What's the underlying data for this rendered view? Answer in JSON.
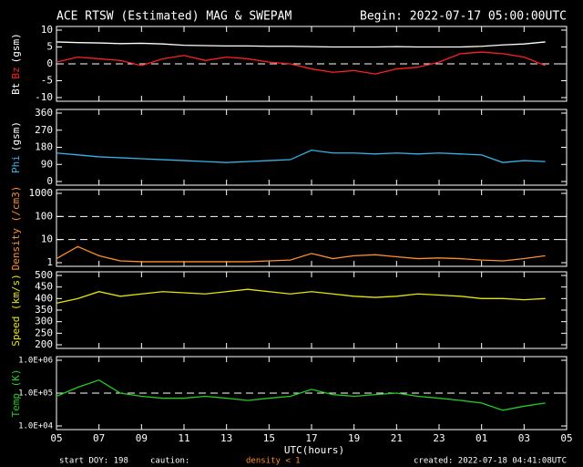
{
  "title": "ACE RTSW (Estimated) MAG & SWEPAM",
  "begin": "Begin: 2022-07-17 05:00:00UTC",
  "xlabel": "UTC(hours)",
  "footer": {
    "start": "start DOY: 198",
    "caution": "caution:",
    "caution_note": "density < 1",
    "caution_color": "#ff8c2a",
    "created": "created: 2022-07-18 04:41:08UTC"
  },
  "chart_data": [
    {
      "type": "line",
      "ylabel": [
        {
          "text": "Bt",
          "color": "#ffffff"
        },
        {
          "text": "Bz",
          "color": "#ff2020"
        },
        {
          "text": "(gsm)",
          "color": "#ffffff"
        }
      ],
      "x": [
        0,
        1,
        2,
        3,
        4,
        5,
        6,
        7,
        8,
        9,
        10,
        11,
        12,
        13,
        14,
        15,
        16,
        17,
        18,
        19,
        20,
        21,
        22,
        23
      ],
      "series": [
        {
          "name": "Bt",
          "color": "#ffffff",
          "values": [
            6.5,
            6.3,
            6.2,
            6.0,
            6.1,
            5.9,
            5.5,
            5.4,
            5.3,
            5.3,
            5.2,
            5.2,
            5.1,
            5.0,
            5.0,
            5.0,
            5.1,
            5.0,
            5.0,
            5.0,
            5.2,
            5.6,
            5.9,
            6.5
          ]
        },
        {
          "name": "Bz",
          "color": "#ff2020",
          "values": [
            0.5,
            2,
            1.5,
            1,
            -0.5,
            1.5,
            2.5,
            1,
            2,
            1.5,
            0.5,
            0,
            -1.5,
            -2.5,
            -2,
            -3,
            -1.5,
            -1,
            0.5,
            3,
            3.5,
            3,
            2,
            -0.5
          ]
        }
      ],
      "xlim": [
        0,
        24
      ],
      "ylim": [
        -10,
        10
      ],
      "yticks": [
        -10,
        -5,
        0,
        5,
        10
      ],
      "hlines": [
        0
      ],
      "log": false
    },
    {
      "type": "line",
      "ylabel": [
        {
          "text": "Phi",
          "color": "#33b3e6"
        },
        {
          "text": "(gsm)",
          "color": "#ffffff"
        }
      ],
      "x": [
        0,
        1,
        2,
        3,
        4,
        5,
        6,
        7,
        8,
        9,
        10,
        11,
        12,
        13,
        14,
        15,
        16,
        17,
        18,
        19,
        20,
        21,
        22,
        23
      ],
      "series": [
        {
          "name": "Phi",
          "color": "#33b3e6",
          "values": [
            150,
            140,
            130,
            125,
            120,
            115,
            110,
            105,
            100,
            105,
            110,
            115,
            165,
            150,
            150,
            145,
            150,
            145,
            150,
            145,
            140,
            100,
            110,
            105
          ]
        }
      ],
      "xlim": [
        0,
        24
      ],
      "ylim": [
        0,
        360
      ],
      "yticks": [
        0,
        90,
        180,
        270,
        360
      ],
      "hlines": [],
      "log": false
    },
    {
      "type": "line",
      "ylabel": [
        {
          "text": "Density (/cm3)",
          "color": "#ff8c2a"
        }
      ],
      "x": [
        0,
        1,
        2,
        3,
        4,
        5,
        6,
        7,
        8,
        9,
        10,
        11,
        12,
        13,
        14,
        15,
        16,
        17,
        18,
        19,
        20,
        21,
        22,
        23
      ],
      "series": [
        {
          "name": "Density",
          "color": "#ff8c2a",
          "values": [
            1.5,
            5,
            2,
            1.2,
            1.1,
            1.1,
            1.1,
            1.1,
            1.1,
            1.1,
            1.2,
            1.3,
            2.5,
            1.5,
            2,
            2.2,
            1.8,
            1.5,
            1.6,
            1.5,
            1.3,
            1.2,
            1.5,
            2
          ]
        }
      ],
      "xlim": [
        0,
        24
      ],
      "ylim": [
        1,
        1000
      ],
      "yticks": [
        1,
        10,
        100,
        1000
      ],
      "hlines": [
        10,
        100
      ],
      "log": true
    },
    {
      "type": "line",
      "ylabel": [
        {
          "text": "Speed (km/s)",
          "color": "#e6e600"
        }
      ],
      "x": [
        0,
        1,
        2,
        3,
        4,
        5,
        6,
        7,
        8,
        9,
        10,
        11,
        12,
        13,
        14,
        15,
        16,
        17,
        18,
        19,
        20,
        21,
        22,
        23
      ],
      "series": [
        {
          "name": "Speed",
          "color": "#e6e600",
          "values": [
            380,
            400,
            430,
            410,
            420,
            430,
            425,
            420,
            430,
            440,
            430,
            420,
            430,
            420,
            410,
            405,
            410,
            420,
            415,
            410,
            400,
            400,
            395,
            400
          ]
        }
      ],
      "xlim": [
        0,
        24
      ],
      "ylim": [
        200,
        500
      ],
      "yticks": [
        200,
        250,
        300,
        350,
        400,
        450,
        500
      ],
      "hlines": [],
      "log": false
    },
    {
      "type": "line",
      "ylabel": [
        {
          "text": "Temp (K)",
          "color": "#22cc22"
        }
      ],
      "x": [
        0,
        1,
        2,
        3,
        4,
        5,
        6,
        7,
        8,
        9,
        10,
        11,
        12,
        13,
        14,
        15,
        16,
        17,
        18,
        19,
        20,
        21,
        22,
        23
      ],
      "series": [
        {
          "name": "Temp",
          "color": "#22cc22",
          "values": [
            80000,
            150000,
            250000,
            100000,
            80000,
            70000,
            70000,
            80000,
            70000,
            60000,
            70000,
            80000,
            130000,
            90000,
            80000,
            90000,
            100000,
            80000,
            70000,
            60000,
            50000,
            30000,
            40000,
            50000
          ]
        }
      ],
      "xlim": [
        0,
        24
      ],
      "ylim": [
        10000,
        1000000
      ],
      "yticks": [
        {
          "value": 10000,
          "label": "1.0E+04"
        },
        {
          "value": 100000,
          "label": "1.0E+05"
        },
        {
          "value": 1000000,
          "label": "1.0E+06"
        }
      ],
      "hlines": [
        100000
      ],
      "log": true,
      "xticks": [
        {
          "value": 0,
          "label": "05"
        },
        {
          "value": 2,
          "label": "07"
        },
        {
          "value": 4,
          "label": "09"
        },
        {
          "value": 6,
          "label": "11"
        },
        {
          "value": 8,
          "label": "13"
        },
        {
          "value": 10,
          "label": "15"
        },
        {
          "value": 12,
          "label": "17"
        },
        {
          "value": 14,
          "label": "19"
        },
        {
          "value": 16,
          "label": "21"
        },
        {
          "value": 18,
          "label": "23"
        },
        {
          "value": 20,
          "label": "01"
        },
        {
          "value": 22,
          "label": "03"
        },
        {
          "value": 24,
          "label": "05"
        }
      ]
    }
  ]
}
